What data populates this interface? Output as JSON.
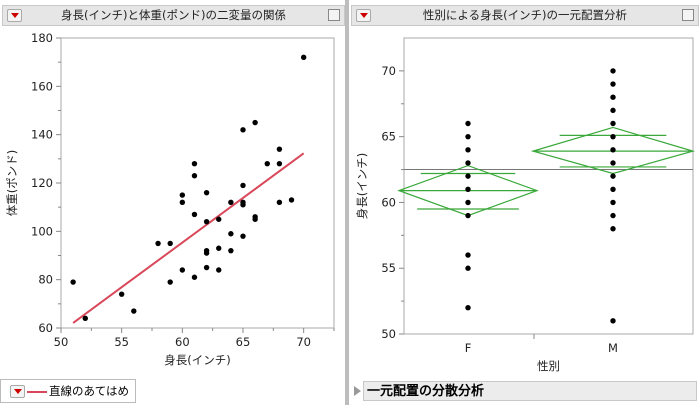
{
  "left": {
    "title": "身長(インチ)と体重(ポンド)の二変量の関係",
    "legend_label": "直線のあてはめ",
    "fit_color": "#d9485a"
  },
  "right": {
    "title": "性別による身長(インチ)の一元配置分析",
    "anova_label": "一元配置の分散分析",
    "diamond_color": "#3aa83a"
  },
  "chart_data": [
    {
      "type": "scatter",
      "xlabel": "身長(インチ)",
      "ylabel": "体重(ポンド)",
      "xlim": [
        50,
        72.5
      ],
      "ylim": [
        60,
        180
      ],
      "xticks": [
        50,
        55,
        60,
        65,
        70
      ],
      "yticks": [
        60,
        80,
        100,
        120,
        140,
        160,
        180
      ],
      "points": [
        [
          51,
          79
        ],
        [
          52,
          64
        ],
        [
          55,
          74
        ],
        [
          56,
          67
        ],
        [
          58,
          95
        ],
        [
          59,
          95
        ],
        [
          59,
          79
        ],
        [
          60,
          115
        ],
        [
          60,
          112
        ],
        [
          60,
          84
        ],
        [
          61,
          128
        ],
        [
          61,
          123
        ],
        [
          61,
          107
        ],
        [
          61,
          81
        ],
        [
          62,
          116
        ],
        [
          62,
          104
        ],
        [
          62,
          92
        ],
        [
          62,
          91
        ],
        [
          62,
          85
        ],
        [
          63,
          105
        ],
        [
          63,
          93
        ],
        [
          63,
          84
        ],
        [
          64,
          112
        ],
        [
          64,
          99
        ],
        [
          64,
          92
        ],
        [
          65,
          142
        ],
        [
          65,
          119
        ],
        [
          65,
          112
        ],
        [
          65,
          111
        ],
        [
          65,
          98
        ],
        [
          66,
          145
        ],
        [
          66,
          106
        ],
        [
          66,
          105
        ],
        [
          67,
          128
        ],
        [
          68,
          134
        ],
        [
          68,
          128
        ],
        [
          68,
          112
        ],
        [
          69,
          113
        ],
        [
          70,
          172
        ]
      ],
      "fit_line": {
        "name": "直線のあてはめ",
        "x": [
          51,
          70
        ],
        "y": [
          62.1,
          132.3
        ]
      }
    },
    {
      "type": "scatter",
      "xlabel": "性別",
      "ylabel": "身長(インチ)",
      "categories": [
        "F",
        "M"
      ],
      "ylim": [
        50,
        72.5
      ],
      "yticks": [
        50,
        55,
        60,
        65,
        70
      ],
      "grand_mean": 62.5,
      "groups": [
        {
          "category": "F",
          "values": [
            66,
            65,
            64,
            63,
            62,
            61,
            60,
            59,
            56,
            55,
            52
          ],
          "mean": 60.9,
          "ci": [
            59.0,
            62.8
          ],
          "overlap": [
            59.5,
            62.2
          ]
        },
        {
          "category": "M",
          "values": [
            70,
            69,
            68,
            67,
            66,
            65,
            64,
            63,
            62,
            61,
            60,
            59,
            58,
            51
          ],
          "mean": 63.9,
          "ci": [
            62.2,
            65.7
          ],
          "overlap": [
            62.7,
            65.1
          ]
        }
      ]
    }
  ]
}
